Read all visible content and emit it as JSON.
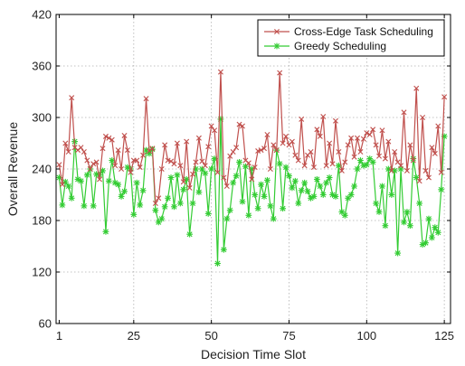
{
  "chart_data": {
    "type": "line",
    "xlabel": "Decision Time Slot",
    "ylabel": "Overall Revenue",
    "xlim": [
      0,
      127
    ],
    "ylim": [
      60,
      420
    ],
    "xticks": [
      1,
      25,
      50,
      75,
      100,
      125
    ],
    "yticks": [
      60,
      120,
      180,
      240,
      300,
      360,
      420
    ],
    "grid": true,
    "legend_position": "top-right",
    "series": [
      {
        "name": "Cross-Edge Task Scheduling",
        "color": "#c0504d",
        "marker": "x",
        "values": [
          245,
          222,
          270,
          260,
          323,
          265,
          262,
          265,
          260,
          250,
          240,
          246,
          248,
          228,
          264,
          278,
          276,
          274,
          244,
          262,
          240,
          279,
          262,
          236,
          250,
          250,
          242,
          256,
          322,
          261,
          264,
          200,
          206,
          240,
          268,
          250,
          249,
          246,
          270,
          244,
          225,
          272,
          218,
          234,
          248,
          276,
          249,
          244,
          266,
          290,
          285,
          236,
          353,
          230,
          220,
          255,
          260,
          265,
          292,
          290,
          250,
          247,
          228,
          242,
          261,
          262,
          264,
          280,
          240,
          268,
          262,
          352,
          270,
          278,
          268,
          272,
          256,
          250,
          298,
          244,
          256,
          260,
          242,
          286,
          278,
          301,
          244,
          270,
          246,
          296,
          260,
          238,
          248,
          268,
          276,
          254,
          276,
          260,
          275,
          282,
          280,
          286,
          268,
          255,
          285,
          252,
          272,
          238,
          260,
          248,
          244,
          306,
          238,
          268,
          250,
          334,
          226,
          300,
          238,
          230,
          265,
          258,
          290,
          236,
          324
        ]
      },
      {
        "name": "Greedy Scheduling",
        "color": "#33cc33",
        "marker": "*",
        "values": [
          230,
          198,
          225,
          220,
          206,
          272,
          228,
          226,
          197,
          233,
          240,
          197,
          234,
          233,
          238,
          167,
          226,
          250,
          224,
          222,
          208,
          214,
          242,
          240,
          187,
          224,
          198,
          215,
          262,
          258,
          263,
          192,
          178,
          182,
          196,
          206,
          230,
          196,
          233,
          200,
          216,
          228,
          164,
          200,
          240,
          213,
          240,
          235,
          188,
          240,
          252,
          130,
          298,
          146,
          182,
          192,
          224,
          232,
          248,
          202,
          243,
          186,
          240,
          210,
          194,
          222,
          208,
          227,
          197,
          182,
          262,
          246,
          194,
          242,
          232,
          218,
          226,
          200,
          215,
          224,
          214,
          206,
          208,
          228,
          220,
          210,
          224,
          230,
          210,
          208,
          244,
          190,
          186,
          206,
          210,
          220,
          240,
          250,
          244,
          245,
          252,
          248,
          200,
          190,
          220,
          174,
          240,
          210,
          238,
          142,
          240,
          178,
          190,
          174,
          252,
          230,
          200,
          152,
          154,
          182,
          160,
          172,
          166,
          216,
          278
        ]
      }
    ]
  }
}
